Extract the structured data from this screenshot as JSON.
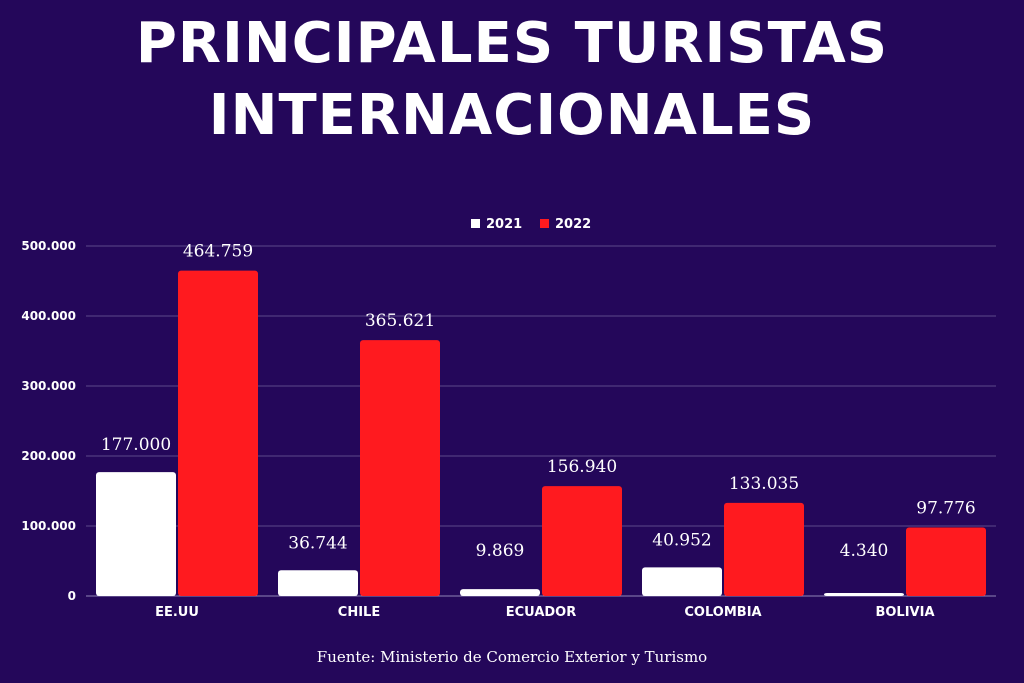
{
  "title": {
    "line1": "PRINCIPALES  TURISTAS",
    "line2": "INTERNACIONALES"
  },
  "source": "Fuente: Ministerio de Comercio Exterior y Turismo",
  "colors": {
    "background": "#24075a",
    "series_2021": "#ffffff",
    "series_2022": "#ff1a1f",
    "grid": "#5b4a8a"
  },
  "chart_data": {
    "type": "bar",
    "title": "PRINCIPALES  TURISTAS INTERNACIONALES",
    "categories": [
      "EE.UU",
      "CHILE",
      "ECUADOR",
      "COLOMBIA",
      "BOLIVIA"
    ],
    "series": [
      {
        "name": "2021",
        "values": [
          177000,
          36744,
          9869,
          40952,
          4340
        ],
        "labels": [
          "177.000",
          "36.744",
          "9.869",
          "40.952",
          "4.340"
        ]
      },
      {
        "name": "2022",
        "values": [
          464759,
          365621,
          156940,
          133035,
          97776
        ],
        "labels": [
          "464.759",
          "365.621",
          "156.940",
          "133.035",
          "97.776"
        ]
      }
    ],
    "y_ticks": [
      0,
      100000,
      200000,
      300000,
      400000,
      500000
    ],
    "y_tick_labels": [
      "0",
      "100.000",
      "200.000",
      "300.000",
      "400.000",
      "500.000"
    ],
    "ylim": [
      0,
      500000
    ],
    "grid": true,
    "legend_position": "top-center"
  }
}
